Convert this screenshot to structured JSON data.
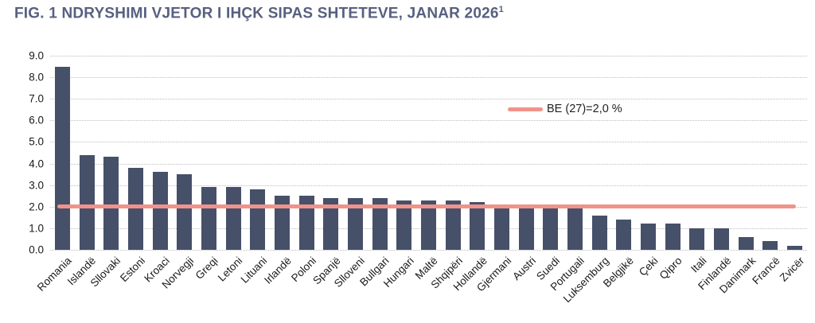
{
  "title": {
    "text": "FIG. 1 NDRYSHIMI VJETOR I IHÇK SIPAS SHTETEVE, JANAR 2026",
    "superscript": "1"
  },
  "legend": {
    "label": "BE (27)=2,0 %"
  },
  "colors": {
    "bar": "#465069",
    "reference_line": "#F0938B",
    "title": "#586080",
    "gridline": "#BDBDBD",
    "axis_text": "#1a1a1a"
  },
  "chart_data": {
    "type": "bar",
    "title": "FIG. 1 NDRYSHIMI VJETOR I IHÇK SIPAS SHTETEVE, JANAR 2026",
    "categories": [
      "Romania",
      "Islandë",
      "Sllovaki",
      "Estoni",
      "Kroaci",
      "Norvegji",
      "Greqi",
      "Letoni",
      "Lituani",
      "Irlandë",
      "Poloni",
      "Spanjë",
      "Slloveni",
      "Bullgari",
      "Hungari",
      "Maltë",
      "Shqipëri",
      "Hollandë",
      "Gjermani",
      "Austri",
      "Suedi",
      "Portugali",
      "Luksemburg",
      "Belgjikë",
      "Çeki",
      "Qipro",
      "Itali",
      "Finlandë",
      "Danimark",
      "Francë",
      "Zvicër"
    ],
    "values": [
      8.5,
      4.4,
      4.3,
      3.8,
      3.6,
      3.5,
      2.9,
      2.9,
      2.8,
      2.5,
      2.5,
      2.4,
      2.4,
      2.4,
      2.3,
      2.3,
      2.3,
      2.2,
      2.1,
      2.0,
      2.0,
      1.9,
      1.6,
      1.4,
      1.2,
      1.2,
      1.0,
      1.0,
      0.6,
      0.4,
      0.2
    ],
    "reference_line": {
      "value": 2.0,
      "label": "BE (27)=2,0 %"
    },
    "xlabel": "",
    "ylabel": "",
    "ylim": [
      0,
      9
    ],
    "ytick_step": 1,
    "ytick_labels": [
      "0.0",
      "1.0",
      "2.0",
      "3.0",
      "4.0",
      "5.0",
      "6.0",
      "7.0",
      "8.0",
      "9.0"
    ],
    "grid": "horizontal-dotted",
    "legend_position": "inside-top-right",
    "x_tick_rotation": 45
  }
}
